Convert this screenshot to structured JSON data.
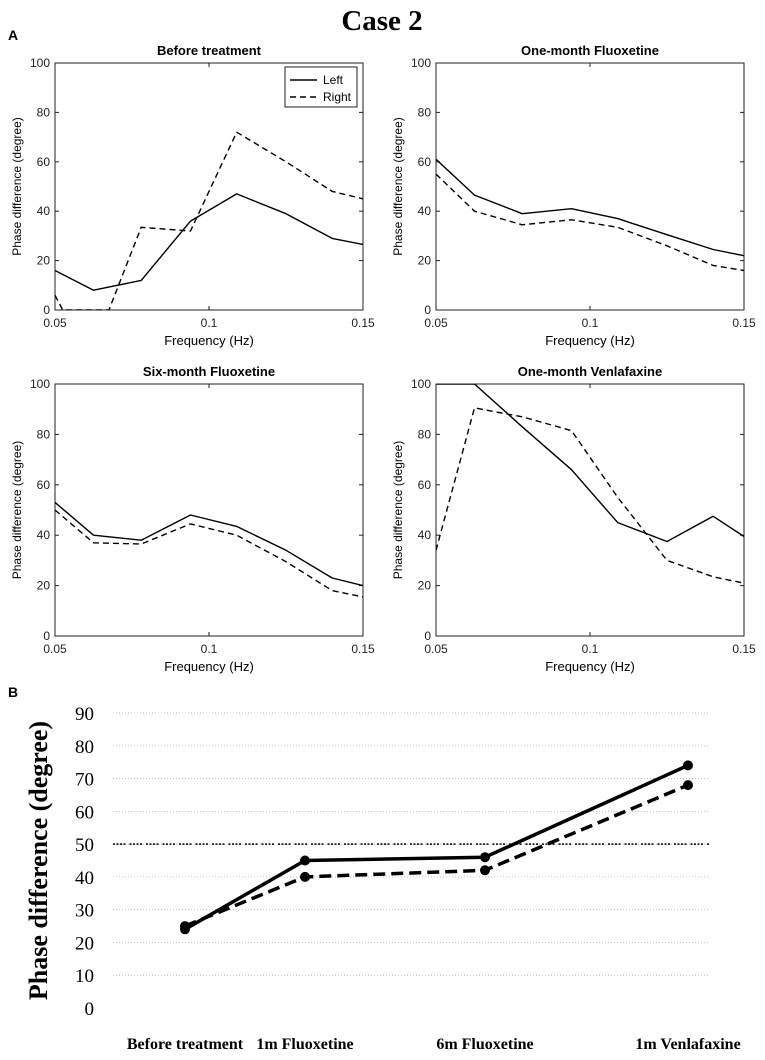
{
  "figure_title": "Case 2",
  "panel_labels": {
    "a": "A",
    "b": "B"
  },
  "colors": {
    "line": "#000000",
    "grid": "#bfbfbf",
    "reference": "#000000"
  },
  "chart_data": [
    {
      "id": "before",
      "type": "line",
      "title": "Before treatment",
      "xlabel": "Frequency (Hz)",
      "ylabel": "Phase difference (degree)",
      "xlim": [
        0.05,
        0.15
      ],
      "ylim": [
        0,
        100
      ],
      "xticks": [
        "0.05",
        "0.1",
        "0.15"
      ],
      "yticks": [
        "0",
        "20",
        "40",
        "60",
        "80",
        "100"
      ],
      "legend": {
        "position": "top-right",
        "entries": [
          "Left",
          "Right"
        ]
      },
      "x": [
        0.05,
        0.0625,
        0.078,
        0.094,
        0.109,
        0.125,
        0.14,
        0.15
      ],
      "series": [
        {
          "name": "Left",
          "style": "solid",
          "values": [
            16,
            8,
            12,
            36,
            47,
            39,
            29,
            26.5
          ]
        },
        {
          "name": "Right",
          "style": "dashed",
          "x": [
            0.05,
            0.0525,
            0.0675,
            0.078,
            0.094,
            0.109,
            0.125,
            0.14,
            0.15
          ],
          "values": [
            6,
            0,
            0,
            33.5,
            32,
            72,
            60,
            48,
            45
          ]
        }
      ]
    },
    {
      "id": "fluox1m",
      "type": "line",
      "title": "One-month Fluoxetine",
      "xlabel": "Frequency (Hz)",
      "ylabel": "Phase difference (degree)",
      "xlim": [
        0.05,
        0.15
      ],
      "ylim": [
        0,
        100
      ],
      "xticks": [
        "0.05",
        "0.1",
        "0.15"
      ],
      "yticks": [
        "0",
        "20",
        "40",
        "60",
        "80",
        "100"
      ],
      "x": [
        0.05,
        0.0625,
        0.078,
        0.094,
        0.109,
        0.125,
        0.14,
        0.15
      ],
      "series": [
        {
          "name": "Left",
          "style": "solid",
          "values": [
            61,
            46.5,
            39,
            41,
            37,
            30.5,
            24.5,
            22
          ]
        },
        {
          "name": "Right",
          "style": "dashed",
          "values": [
            55,
            40,
            34.5,
            36.5,
            33.5,
            26,
            18,
            16
          ]
        }
      ]
    },
    {
      "id": "fluox6m",
      "type": "line",
      "title": "Six-month Fluoxetine",
      "xlabel": "Frequency (Hz)",
      "ylabel": "Phase difference (degree)",
      "xlim": [
        0.05,
        0.15
      ],
      "ylim": [
        0,
        100
      ],
      "xticks": [
        "0.05",
        "0.1",
        "0.15"
      ],
      "yticks": [
        "0",
        "20",
        "40",
        "60",
        "80",
        "100"
      ],
      "x": [
        0.05,
        0.0625,
        0.078,
        0.094,
        0.109,
        0.125,
        0.14,
        0.15
      ],
      "series": [
        {
          "name": "Left",
          "style": "solid",
          "values": [
            53,
            40,
            38,
            48,
            43.5,
            34,
            23,
            20
          ]
        },
        {
          "name": "Right",
          "style": "dashed",
          "values": [
            50,
            37,
            36.5,
            44.5,
            40,
            29.5,
            18,
            15.5
          ]
        }
      ]
    },
    {
      "id": "venla1m",
      "type": "line",
      "title": "One-month Venlafaxine",
      "xlabel": "Frequency (Hz)",
      "ylabel": "Phase difference (degree)",
      "xlim": [
        0.05,
        0.15
      ],
      "ylim": [
        0,
        100
      ],
      "xticks": [
        "0.05",
        "0.1",
        "0.15"
      ],
      "yticks": [
        "0",
        "20",
        "40",
        "60",
        "80",
        "100"
      ],
      "series": [
        {
          "name": "Left",
          "style": "solid",
          "x": [
            0.05,
            0.0525,
            0.0625,
            0.078,
            0.094,
            0.109,
            0.125,
            0.14,
            0.15
          ],
          "values": [
            100,
            100,
            100,
            83,
            66,
            45,
            37.5,
            47.5,
            39.5
          ]
        },
        {
          "name": "Right",
          "style": "dashed",
          "x": [
            0.05,
            0.0625,
            0.078,
            0.094,
            0.109,
            0.125,
            0.14,
            0.15
          ],
          "values": [
            34,
            90.5,
            87,
            81.5,
            55,
            30,
            23.5,
            21
          ]
        }
      ]
    },
    {
      "id": "summary",
      "type": "line",
      "title": "",
      "xlabel": "",
      "ylabel": "Phase difference (degree)",
      "ylim": [
        0,
        90
      ],
      "yticks": [
        "0",
        "10",
        "20",
        "30",
        "40",
        "50",
        "60",
        "70",
        "80",
        "90"
      ],
      "grid": true,
      "reference_line": 50,
      "categories": [
        "Before treatment",
        "1m Fluoxetine",
        "6m Fluoxetine",
        "1m Venlafaxine"
      ],
      "series": [
        {
          "name": "Left",
          "style": "solid",
          "values": [
            24,
            45,
            46,
            74
          ]
        },
        {
          "name": "Right",
          "style": "dashed",
          "values": [
            25,
            40,
            42,
            68
          ]
        }
      ]
    }
  ]
}
